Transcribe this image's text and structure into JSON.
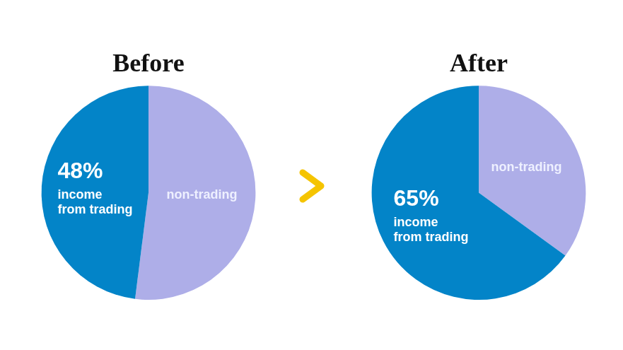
{
  "chart_data": [
    {
      "type": "pie",
      "title": "Before",
      "categories": [
        "non-trading",
        "income from trading"
      ],
      "values": [
        52,
        48
      ],
      "value_labels": [
        null,
        "48%"
      ],
      "colors": [
        "#aeaee8",
        "#0384c8"
      ],
      "data_labels": true
    },
    {
      "type": "pie",
      "title": "After",
      "categories": [
        "non-trading",
        "income from trading"
      ],
      "values": [
        35,
        65
      ],
      "value_labels": [
        null,
        "65%"
      ],
      "colors": [
        "#aeaee8",
        "#0384c8"
      ],
      "data_labels": true
    }
  ]
}
